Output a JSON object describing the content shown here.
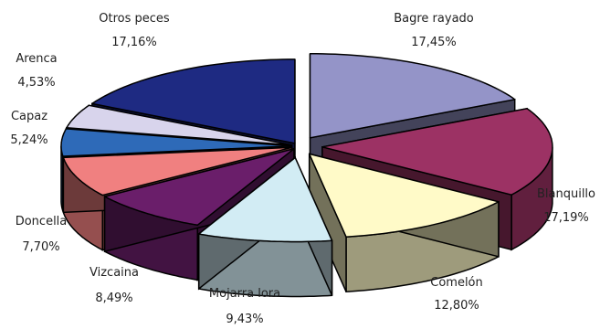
{
  "chart_data": {
    "type": "pie",
    "style": "3d-exploded",
    "slices": [
      {
        "label": "Bagre rayado",
        "value_text": "17,45%",
        "value": 17.45,
        "color": "#9494c8"
      },
      {
        "label": "Blanquillo",
        "value_text": "17,19%",
        "value": 17.19,
        "color": "#9c3264"
      },
      {
        "label": "Comelón",
        "value_text": "12,80%",
        "value": 12.8,
        "color": "#fffac8"
      },
      {
        "label": "Mojarra lora",
        "value_text": "9,43%",
        "value": 9.43,
        "color": "#d2ecf4"
      },
      {
        "label": "Vizcaina",
        "value_text": "8,49%",
        "value": 8.49,
        "color": "#6a1e6a"
      },
      {
        "label": "Doncella",
        "value_text": "7,70%",
        "value": 7.7,
        "color": "#f08080"
      },
      {
        "label": "Capaz",
        "value_text": "5,24%",
        "value": 5.24,
        "color": "#2e6ab8"
      },
      {
        "label": "Arenca",
        "value_text": "4,53%",
        "value": 4.53,
        "color": "#d8d4ec"
      },
      {
        "label": "Otros peces",
        "value_text": "17,16%",
        "value": 17.16,
        "color": "#1e2a82"
      }
    ]
  }
}
